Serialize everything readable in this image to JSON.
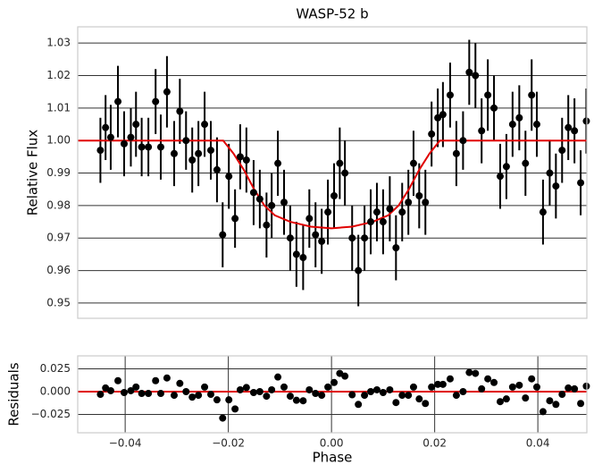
{
  "chart_data": [
    {
      "type": "scatter",
      "title": "WASP-52 b",
      "ylabel": "Relative Flux",
      "color": "#000000",
      "grid": true,
      "xlim": [
        -0.0492,
        0.0495
      ],
      "ylim": [
        0.9453,
        1.035
      ],
      "yticks": [
        0.95,
        0.96,
        0.97,
        0.98,
        0.99,
        {
          "value": 1.0,
          "label": "1.00"
        },
        1.01,
        1.02,
        1.03
      ],
      "x": [
        -0.0448,
        -0.0438,
        -0.0428,
        -0.0414,
        -0.0402,
        -0.0389,
        -0.0379,
        -0.0368,
        -0.0355,
        -0.0341,
        -0.0331,
        -0.0319,
        -0.0305,
        -0.0294,
        -0.0282,
        -0.027,
        -0.0258,
        -0.0246,
        -0.0234,
        -0.0222,
        -0.0211,
        -0.0199,
        -0.0187,
        -0.0177,
        -0.0165,
        -0.0151,
        -0.0139,
        -0.0126,
        -0.0116,
        -0.0104,
        -0.0092,
        -0.008,
        -0.0068,
        -0.0055,
        -0.0043,
        -0.0031,
        -0.0019,
        -0.0007,
        0.0005,
        0.0016,
        0.0026,
        0.004,
        0.0052,
        0.0064,
        0.0076,
        0.0088,
        0.01,
        0.0113,
        0.0125,
        0.0137,
        0.0149,
        0.0159,
        0.017,
        0.0182,
        0.0194,
        0.0206,
        0.0216,
        0.023,
        0.0242,
        0.0255,
        0.0267,
        0.0279,
        0.0291,
        0.0303,
        0.0315,
        0.0327,
        0.0339,
        0.0351,
        0.0364,
        0.0376,
        0.0388,
        0.0398,
        0.041,
        0.0423,
        0.0435,
        0.0447,
        0.0459,
        0.0471,
        0.0483,
        0.0494
      ],
      "values": [
        0.997,
        1.004,
        1.001,
        1.012,
        0.999,
        1.001,
        1.005,
        0.998,
        0.998,
        1.012,
        0.998,
        1.015,
        0.996,
        1.009,
        1.0,
        0.994,
        0.996,
        1.005,
        0.997,
        0.991,
        0.971,
        0.989,
        0.976,
        0.995,
        0.994,
        0.984,
        0.982,
        0.974,
        0.98,
        0.993,
        0.981,
        0.97,
        0.965,
        0.964,
        0.976,
        0.971,
        0.969,
        0.978,
        0.983,
        0.993,
        0.99,
        0.97,
        0.96,
        0.97,
        0.975,
        0.978,
        0.975,
        0.979,
        0.967,
        0.978,
        0.981,
        0.993,
        0.983,
        0.981,
        1.002,
        1.007,
        1.008,
        1.014,
        0.996,
        1.0,
        1.021,
        1.02,
        1.003,
        1.014,
        1.01,
        0.989,
        0.992,
        1.005,
        1.007,
        0.993,
        1.014,
        1.005,
        0.978,
        0.99,
        0.986,
        0.997,
        1.004,
        1.003,
        0.987,
        1.006
      ],
      "errors": [
        0.01,
        0.01,
        0.01,
        0.011,
        0.01,
        0.009,
        0.01,
        0.009,
        0.009,
        0.01,
        0.01,
        0.011,
        0.01,
        0.01,
        0.009,
        0.01,
        0.01,
        0.01,
        0.009,
        0.01,
        0.01,
        0.01,
        0.009,
        0.01,
        0.01,
        0.01,
        0.009,
        0.01,
        0.01,
        0.01,
        0.01,
        0.01,
        0.01,
        0.01,
        0.009,
        0.01,
        0.01,
        0.01,
        0.01,
        0.011,
        0.01,
        0.01,
        0.011,
        0.01,
        0.01,
        0.009,
        0.01,
        0.01,
        0.01,
        0.009,
        0.01,
        0.01,
        0.01,
        0.01,
        0.01,
        0.009,
        0.01,
        0.01,
        0.01,
        0.009,
        0.01,
        0.01,
        0.01,
        0.011,
        0.01,
        0.01,
        0.01,
        0.01,
        0.01,
        0.01,
        0.011,
        0.01,
        0.01,
        0.01,
        0.01,
        0.01,
        0.01,
        0.01,
        0.01,
        0.01
      ],
      "model": {
        "color": "#e00000",
        "x": [
          -0.0492,
          -0.021,
          -0.019,
          -0.017,
          -0.015,
          -0.013,
          -0.011,
          -0.008,
          -0.004,
          0,
          0.004,
          0.008,
          0.011,
          0.013,
          0.015,
          0.017,
          0.019,
          0.021,
          0.0495
        ],
        "values": [
          1,
          1,
          0.996,
          0.991,
          0.985,
          0.98,
          0.977,
          0.975,
          0.9735,
          0.973,
          0.9735,
          0.975,
          0.977,
          0.98,
          0.985,
          0.991,
          0.996,
          1,
          1
        ]
      }
    },
    {
      "type": "scatter",
      "ylabel": "Residuals",
      "xlabel": "Phase",
      "color": "#000000",
      "grid": true,
      "xlim": [
        -0.0492,
        0.0495
      ],
      "ylim": [
        -0.0451,
        0.0392
      ],
      "xticks": [
        {
          "value": -0.04,
          "label": "−0.04"
        },
        {
          "value": -0.02,
          "label": "−0.02"
        },
        {
          "value": 0,
          "label": "0.00"
        },
        0.02,
        0.04
      ],
      "yticks": [
        {
          "value": -0.025,
          "label": "−0.025"
        },
        {
          "value": 0,
          "label": "0.000"
        },
        0.025
      ],
      "x": [
        -0.0448,
        -0.0438,
        -0.0428,
        -0.0414,
        -0.0402,
        -0.0389,
        -0.0379,
        -0.0368,
        -0.0355,
        -0.0341,
        -0.0331,
        -0.0319,
        -0.0305,
        -0.0294,
        -0.0282,
        -0.027,
        -0.0258,
        -0.0246,
        -0.0234,
        -0.0222,
        -0.0211,
        -0.0199,
        -0.0187,
        -0.0177,
        -0.0165,
        -0.0151,
        -0.0139,
        -0.0126,
        -0.0116,
        -0.0104,
        -0.0092,
        -0.008,
        -0.0068,
        -0.0055,
        -0.0043,
        -0.0031,
        -0.0019,
        -0.0007,
        0.0005,
        0.0016,
        0.0026,
        0.004,
        0.0052,
        0.0064,
        0.0076,
        0.0088,
        0.01,
        0.0113,
        0.0125,
        0.0137,
        0.0149,
        0.0159,
        0.017,
        0.0182,
        0.0194,
        0.0206,
        0.0216,
        0.023,
        0.0242,
        0.0255,
        0.0267,
        0.0279,
        0.0291,
        0.0303,
        0.0315,
        0.0327,
        0.0339,
        0.0351,
        0.0364,
        0.0376,
        0.0388,
        0.0398,
        0.041,
        0.0423,
        0.0435,
        0.0447,
        0.0459,
        0.0471,
        0.0483,
        0.0494
      ],
      "values": [
        -0.003,
        0.004,
        0.001,
        0.012,
        -0.001,
        0.001,
        0.005,
        -0.002,
        -0.002,
        0.012,
        -0.002,
        0.015,
        -0.004,
        0.009,
        0.0,
        -0.006,
        -0.004,
        0.005,
        -0.003,
        -0.009,
        -0.029,
        -0.009,
        -0.019,
        0.002,
        0.0045,
        -0.001,
        0.0,
        -0.005,
        0.002,
        0.016,
        0.005,
        -0.005,
        -0.0095,
        -0.01,
        0.002,
        -0.002,
        -0.004,
        0.005,
        0.01,
        0.02,
        0.017,
        -0.0035,
        -0.014,
        -0.004,
        0.0,
        0.002,
        -0.001,
        0.002,
        -0.012,
        -0.004,
        -0.004,
        0.005,
        -0.008,
        -0.013,
        0.005,
        0.008,
        0.008,
        0.014,
        -0.004,
        0.0,
        0.021,
        0.02,
        0.003,
        0.014,
        0.01,
        -0.011,
        -0.008,
        0.005,
        0.007,
        -0.007,
        0.014,
        0.005,
        -0.022,
        -0.01,
        -0.014,
        -0.003,
        0.004,
        0.003,
        -0.013,
        0.006
      ],
      "model": {
        "color": "#e00000",
        "x": [
          -0.0492,
          0.0495
        ],
        "values": [
          0,
          0
        ]
      }
    }
  ]
}
